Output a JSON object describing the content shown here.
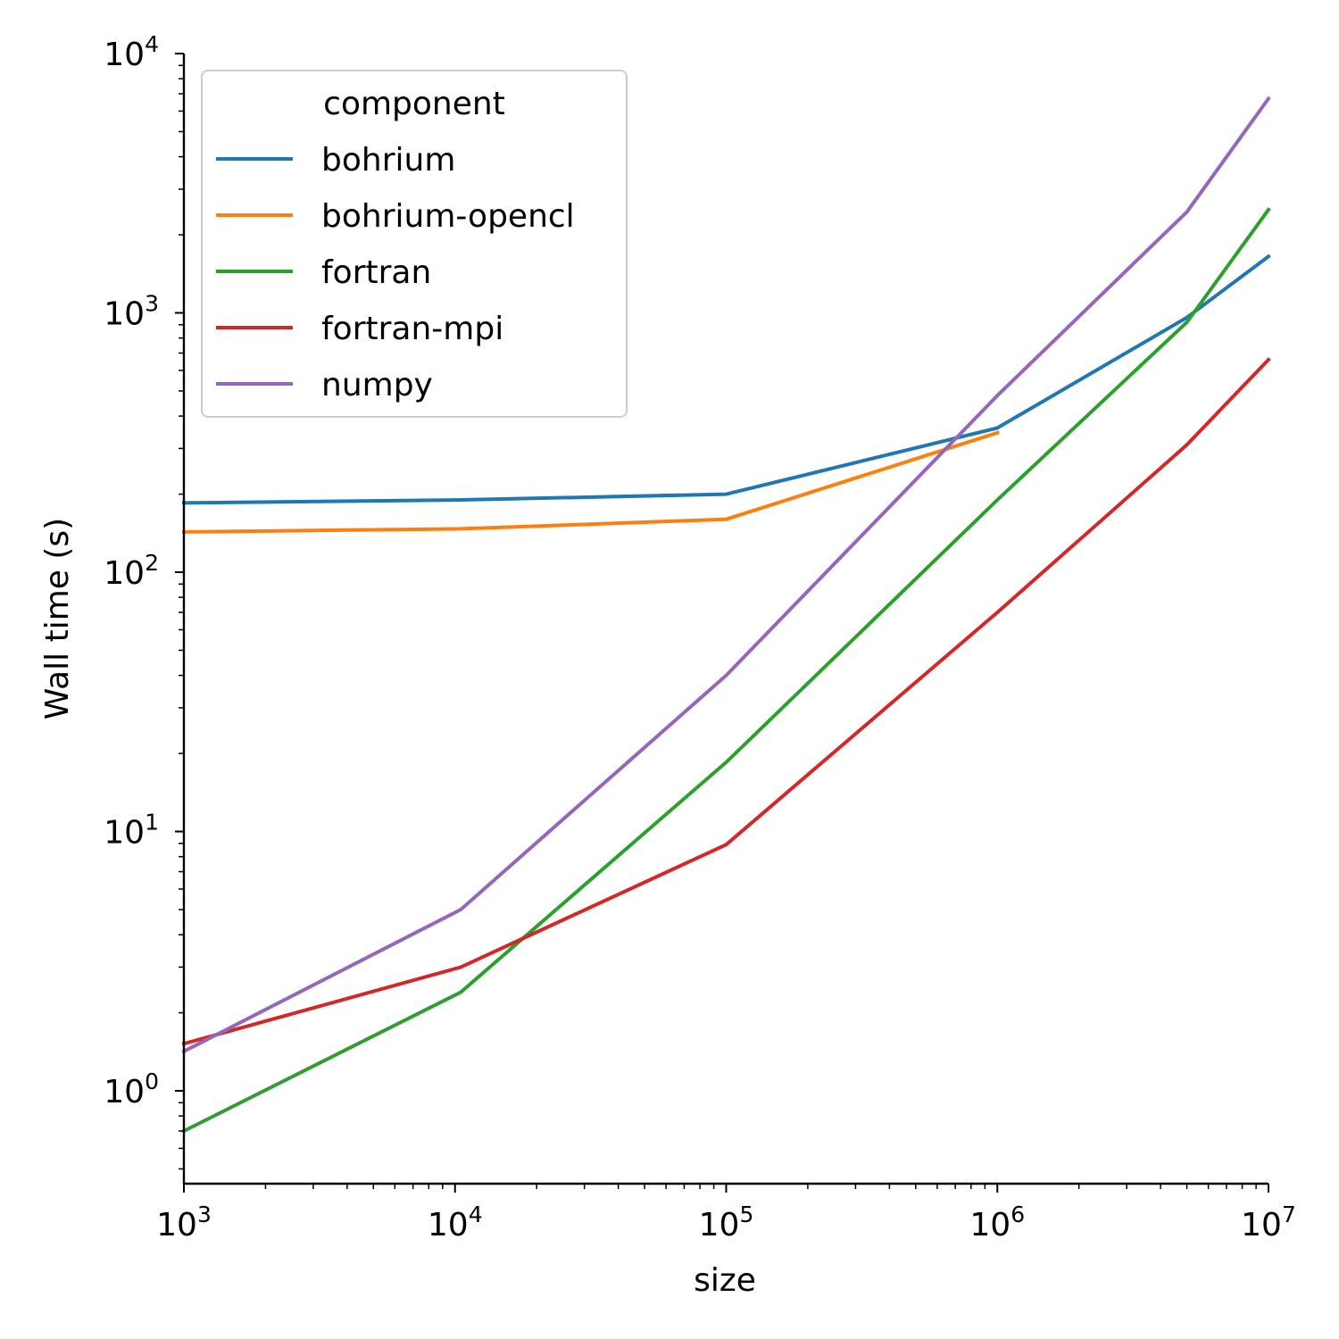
{
  "chart_data": {
    "type": "line",
    "x_scale": "log",
    "y_scale": "log",
    "xlabel": "size",
    "ylabel": "Wall time (s)",
    "xlim": [
      1000,
      10000000
    ],
    "ylim": [
      0.45,
      10000
    ],
    "grid": false,
    "x_ticks": [
      {
        "value": 1000,
        "base": "10",
        "exp": "3"
      },
      {
        "value": 10000,
        "base": "10",
        "exp": "4"
      },
      {
        "value": 100000,
        "base": "10",
        "exp": "5"
      },
      {
        "value": 1000000,
        "base": "10",
        "exp": "6"
      },
      {
        "value": 10000000,
        "base": "10",
        "exp": "7"
      }
    ],
    "y_ticks": [
      {
        "value": 1,
        "base": "10",
        "exp": "0"
      },
      {
        "value": 10,
        "base": "10",
        "exp": "1"
      },
      {
        "value": 100,
        "base": "10",
        "exp": "2"
      },
      {
        "value": 1000,
        "base": "10",
        "exp": "3"
      },
      {
        "value": 10000,
        "base": "10",
        "exp": "4"
      }
    ],
    "legend": {
      "title": "component",
      "placement": "top-left"
    },
    "series": [
      {
        "name": "bohrium",
        "color": "#1f77b4",
        "x": [
          1000,
          10500,
          100000,
          1000000,
          5000000,
          10000000
        ],
        "y": [
          185,
          190,
          200,
          360,
          960,
          1650
        ]
      },
      {
        "name": "bohrium-opencl",
        "color": "#ff7f0e",
        "x": [
          1000,
          10500,
          100000,
          1000000
        ],
        "y": [
          143,
          147,
          160,
          345
        ]
      },
      {
        "name": "fortran",
        "color": "#2ca02c",
        "x": [
          1000,
          10500,
          100000,
          1000000,
          5000000,
          10000000
        ],
        "y": [
          0.7,
          2.4,
          18.5,
          190,
          920,
          2500
        ]
      },
      {
        "name": "fortran-mpi",
        "color": "#d62728",
        "x": [
          1000,
          10500,
          100000,
          1000000,
          5000000,
          10000000
        ],
        "y": [
          1.52,
          3.0,
          8.9,
          70,
          310,
          660
        ]
      },
      {
        "name": "numpy",
        "color": "#9467bd",
        "x": [
          1000,
          10500,
          100000,
          1000000,
          5000000,
          10000000
        ],
        "y": [
          1.42,
          5.0,
          40,
          480,
          2450,
          6700
        ]
      }
    ]
  }
}
